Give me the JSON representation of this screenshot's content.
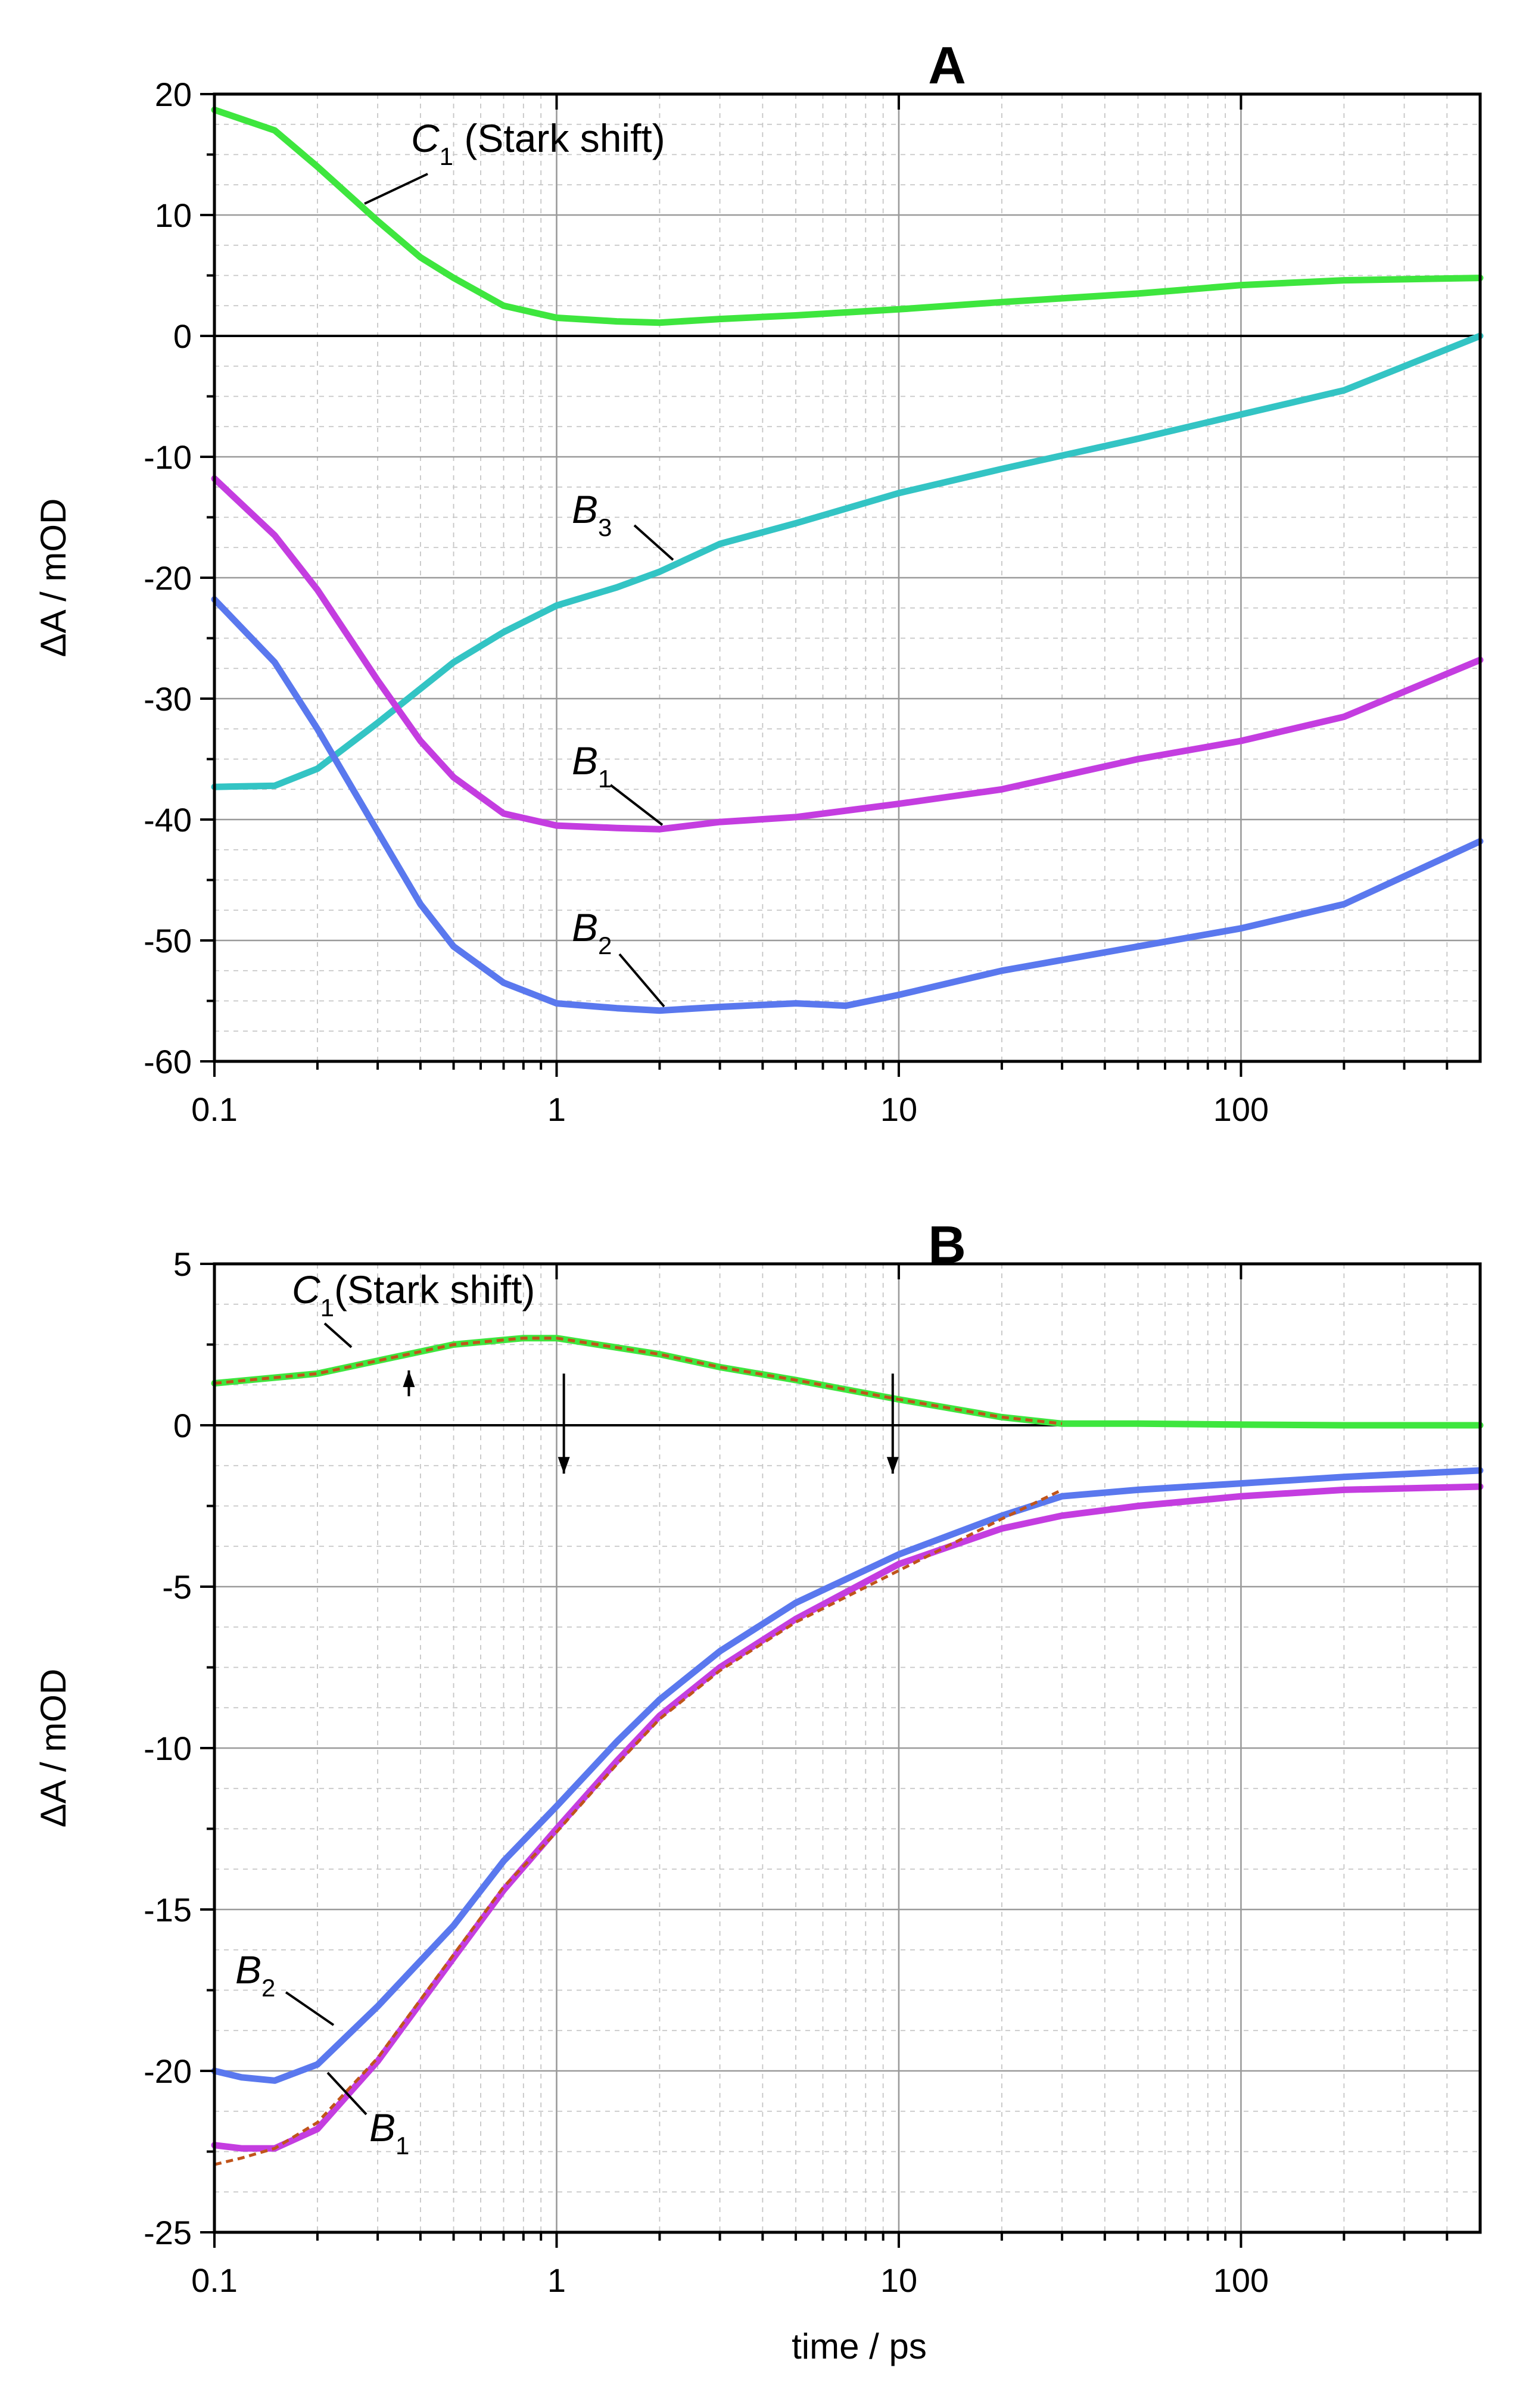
{
  "chart_data": [
    {
      "type": "line",
      "panel": "A",
      "title": "A",
      "xlabel": "",
      "ylabel": "ΔA / mOD",
      "x_scale": "log",
      "xlim": [
        0.1,
        500
      ],
      "ylim": [
        -60,
        20
      ],
      "x_ticks": [
        0.1,
        1,
        10,
        100
      ],
      "x_tick_labels": [
        "0.1",
        "1",
        "10",
        "100"
      ],
      "y_ticks": [
        20,
        10,
        0,
        -10,
        -20,
        -30,
        -40,
        -50,
        -60
      ],
      "y_tick_labels": [
        "20",
        "10",
        "0",
        "-10",
        "-20",
        "-30",
        "-40",
        "-50",
        "-60"
      ],
      "grid": true,
      "series": [
        {
          "name": "C1 (Stark shift)",
          "label_main": "C",
          "label_sub": "1",
          "label_extra": " (Stark shift)",
          "color": "#3ee63e",
          "x": [
            0.1,
            0.15,
            0.2,
            0.3,
            0.4,
            0.5,
            0.7,
            1,
            1.5,
            2,
            3,
            5,
            10,
            20,
            50,
            100,
            200,
            500
          ],
          "y": [
            18.7,
            17,
            14,
            9.5,
            6.5,
            4.8,
            2.5,
            1.5,
            1.2,
            1.1,
            1.4,
            1.7,
            2.2,
            2.8,
            3.5,
            4.2,
            4.6,
            4.8
          ]
        },
        {
          "name": "B3",
          "label_main": "B",
          "label_sub": "3",
          "label_extra": "",
          "color": "#33c4c4",
          "x": [
            0.1,
            0.15,
            0.2,
            0.3,
            0.5,
            0.7,
            1,
            1.5,
            2,
            3,
            5,
            10,
            20,
            50,
            100,
            200,
            500
          ],
          "y": [
            -37.3,
            -37.2,
            -35.8,
            -32,
            -27,
            -24.5,
            -22.3,
            -20.8,
            -19.5,
            -17.2,
            -15.5,
            -13,
            -11,
            -8.5,
            -6.5,
            -4.5,
            0
          ]
        },
        {
          "name": "B1",
          "label_main": "B",
          "label_sub": "1",
          "label_extra": "",
          "color": "#c43de0",
          "x": [
            0.1,
            0.15,
            0.2,
            0.3,
            0.4,
            0.5,
            0.7,
            1,
            1.5,
            2,
            3,
            5,
            10,
            20,
            50,
            100,
            200,
            500
          ],
          "y": [
            -11.8,
            -16.5,
            -21,
            -28.5,
            -33.5,
            -36.5,
            -39.5,
            -40.5,
            -40.7,
            -40.8,
            -40.2,
            -39.8,
            -38.7,
            -37.5,
            -35,
            -33.5,
            -31.5,
            -26.8
          ]
        },
        {
          "name": "B2",
          "label_main": "B",
          "label_sub": "2",
          "label_extra": "",
          "color": "#5a78ee",
          "x": [
            0.1,
            0.15,
            0.2,
            0.3,
            0.4,
            0.5,
            0.7,
            1,
            1.5,
            2,
            3,
            5,
            7,
            10,
            20,
            50,
            100,
            200,
            500
          ],
          "y": [
            -21.8,
            -27,
            -32.5,
            -41,
            -47,
            -50.5,
            -53.5,
            -55.2,
            -55.6,
            -55.8,
            -55.5,
            -55.2,
            -55.4,
            -54.5,
            -52.5,
            -50.5,
            -49,
            -47,
            -41.8
          ]
        }
      ]
    },
    {
      "type": "line",
      "panel": "B",
      "title": "B",
      "xlabel": "time / ps",
      "ylabel": "ΔA / mOD",
      "x_scale": "log",
      "xlim": [
        0.1,
        500
      ],
      "ylim": [
        -25,
        5
      ],
      "x_ticks": [
        0.1,
        1,
        10,
        100
      ],
      "x_tick_labels": [
        "0.1",
        "1",
        "10",
        "100"
      ],
      "y_ticks": [
        5,
        0,
        -5,
        -10,
        -15,
        -20,
        -25
      ],
      "y_tick_labels": [
        "5",
        "0",
        "-5",
        "-10",
        "-15",
        "-20",
        "-25"
      ],
      "grid": true,
      "series": [
        {
          "name": "C1 (Stark shift)",
          "label_main": "C",
          "label_sub": "1",
          "label_extra": "(Stark shift)",
          "color": "#3ee63e",
          "x": [
            0.1,
            0.2,
            0.3,
            0.5,
            0.8,
            1,
            2,
            3,
            5,
            10,
            20,
            30,
            50,
            100,
            200,
            500
          ],
          "y": [
            1.3,
            1.6,
            2.0,
            2.5,
            2.7,
            2.7,
            2.2,
            1.8,
            1.4,
            0.8,
            0.25,
            0.05,
            0.05,
            0.02,
            0.0,
            0.0
          ]
        },
        {
          "name": "C1 fit",
          "label_main": "",
          "label_sub": "",
          "label_extra": "",
          "color": "#c0541a",
          "dashed": true,
          "x": [
            0.1,
            0.2,
            0.3,
            0.5,
            0.8,
            1,
            2,
            3,
            5,
            10,
            20,
            30
          ],
          "y": [
            1.3,
            1.6,
            2.0,
            2.5,
            2.7,
            2.7,
            2.2,
            1.8,
            1.4,
            0.8,
            0.25,
            0.05
          ]
        },
        {
          "name": "B2",
          "label_main": "B",
          "label_sub": "2",
          "label_extra": "",
          "color": "#5a78ee",
          "x": [
            0.1,
            0.12,
            0.15,
            0.2,
            0.3,
            0.5,
            0.7,
            1,
            1.5,
            2,
            3,
            5,
            10,
            20,
            30,
            50,
            100,
            200,
            500
          ],
          "y": [
            -20.0,
            -20.2,
            -20.3,
            -19.8,
            -18.0,
            -15.5,
            -13.5,
            -11.8,
            -9.8,
            -8.5,
            -7.0,
            -5.5,
            -4.0,
            -2.8,
            -2.2,
            -2.0,
            -1.8,
            -1.6,
            -1.4
          ]
        },
        {
          "name": "B1",
          "label_main": "B",
          "label_sub": "1",
          "label_extra": "",
          "color": "#c43de0",
          "x": [
            0.1,
            0.12,
            0.15,
            0.2,
            0.3,
            0.5,
            0.7,
            1,
            1.5,
            2,
            3,
            5,
            10,
            20,
            30,
            50,
            100,
            200,
            500
          ],
          "y": [
            -22.3,
            -22.4,
            -22.4,
            -21.8,
            -19.7,
            -16.5,
            -14.4,
            -12.5,
            -10.4,
            -9.0,
            -7.5,
            -6.0,
            -4.3,
            -3.2,
            -2.8,
            -2.5,
            -2.2,
            -2.0,
            -1.9
          ]
        },
        {
          "name": "B1 fit",
          "label_main": "",
          "label_sub": "",
          "label_extra": "",
          "color": "#c0541a",
          "dashed": true,
          "x": [
            0.1,
            0.12,
            0.15,
            0.2,
            0.3,
            0.5,
            0.7,
            1,
            1.5,
            2,
            3,
            5,
            10,
            20,
            30
          ],
          "y": [
            -22.9,
            -22.7,
            -22.4,
            -21.6,
            -19.6,
            -16.4,
            -14.3,
            -12.6,
            -10.5,
            -9.1,
            -7.6,
            -6.1,
            -4.5,
            -2.9,
            -2.0
          ]
        }
      ],
      "markers": [
        {
          "name": "rise-arrow",
          "x": 0.37,
          "y_from": 0.9,
          "y_to": 1.7
        },
        {
          "name": "time-constant-arrow",
          "x": 1.05,
          "y_from": 1.6,
          "y_to": -1.5
        },
        {
          "name": "time-constant-arrow",
          "x": 9.6,
          "y_from": 1.6,
          "y_to": -1.5
        }
      ]
    }
  ]
}
